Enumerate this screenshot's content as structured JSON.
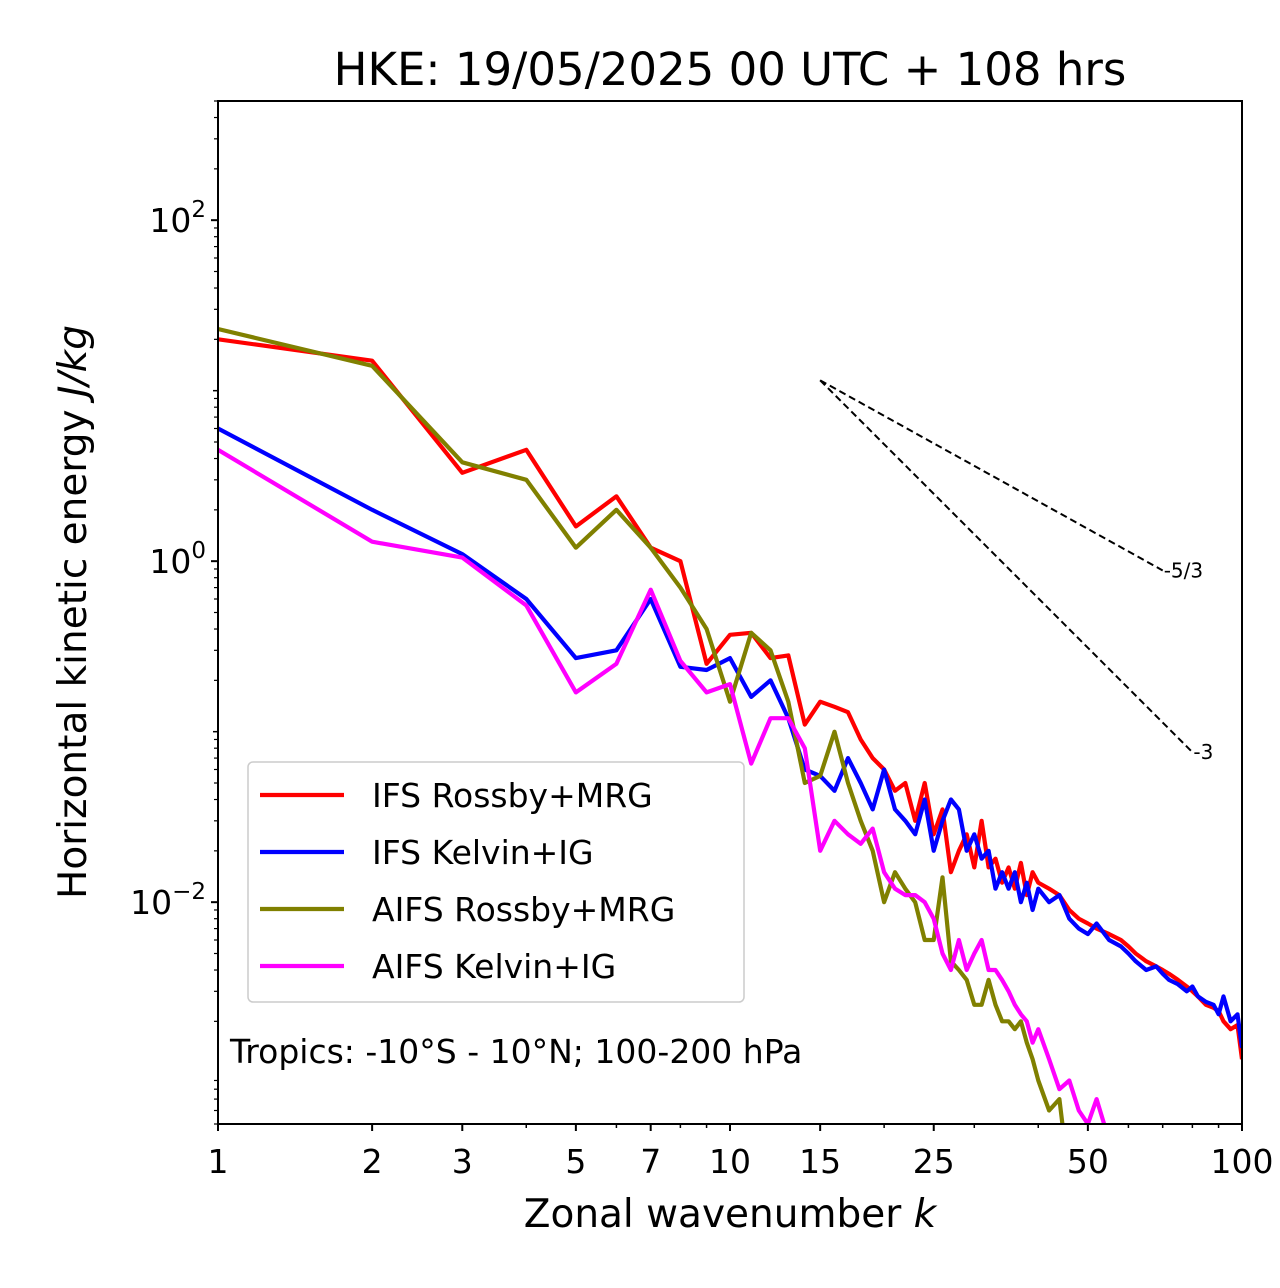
{
  "chart_data": {
    "type": "line",
    "title": "HKE: 19/05/2025 00 UTC + 108 hrs",
    "xlabel": "Zonal wavenumber",
    "xlabel_var": "k",
    "ylabel": "Horizontal kinetic energy",
    "ylabel_unit": "J/kg",
    "xscale": "log",
    "yscale": "log",
    "xlim": [
      1,
      100
    ],
    "ylim": [
      0.0005,
      500
    ],
    "grid": false,
    "legend_position": "lower-left",
    "x_ticks": [
      {
        "value": 1,
        "label": "1"
      },
      {
        "value": 2,
        "label": "2"
      },
      {
        "value": 3,
        "label": "3"
      },
      {
        "value": 5,
        "label": "5"
      },
      {
        "value": 7,
        "label": "7"
      },
      {
        "value": 10,
        "label": "10"
      },
      {
        "value": 15,
        "label": "15"
      },
      {
        "value": 25,
        "label": "25"
      },
      {
        "value": 50,
        "label": "50"
      },
      {
        "value": 100,
        "label": "100"
      }
    ],
    "y_ticks": [
      {
        "value": 0.01,
        "base": "10",
        "exp": "−2"
      },
      {
        "value": 1,
        "base": "10",
        "exp": "0"
      },
      {
        "value": 100,
        "base": "10",
        "exp": "2"
      }
    ],
    "annotation": "Tropics: -10°S - 10°N; 100-200 hPa",
    "reference_lines": [
      {
        "label": "-5/3",
        "slope": -1.6667,
        "x_start": 15,
        "y_start": 11.5,
        "x_end": 70
      },
      {
        "label": "-3",
        "slope": -3,
        "x_start": 15,
        "y_start": 11.5,
        "x_end": 80
      }
    ],
    "series": [
      {
        "name": "IFS Rossby+MRG",
        "color": "#ff0000",
        "x": [
          1,
          2,
          3,
          4,
          5,
          6,
          7,
          8,
          9,
          10,
          11,
          12,
          13,
          14,
          15,
          16,
          17,
          18,
          19,
          20,
          21,
          22,
          23,
          24,
          25,
          26,
          27,
          28,
          29,
          30,
          31,
          32,
          33,
          34,
          35,
          36,
          37,
          38,
          39,
          40,
          42,
          44,
          46,
          48,
          50,
          52,
          55,
          58,
          60,
          62,
          65,
          68,
          70,
          72,
          75,
          78,
          80,
          82,
          85,
          88,
          90,
          92,
          95,
          98,
          100
        ],
        "y": [
          20,
          15,
          3.3,
          4.5,
          1.6,
          2.4,
          1.2,
          1.0,
          0.25,
          0.37,
          0.38,
          0.27,
          0.28,
          0.11,
          0.15,
          0.14,
          0.13,
          0.09,
          0.07,
          0.06,
          0.045,
          0.05,
          0.03,
          0.05,
          0.025,
          0.035,
          0.015,
          0.02,
          0.025,
          0.016,
          0.03,
          0.016,
          0.018,
          0.013,
          0.016,
          0.012,
          0.017,
          0.011,
          0.015,
          0.013,
          0.012,
          0.011,
          0.009,
          0.008,
          0.0075,
          0.007,
          0.0065,
          0.006,
          0.0055,
          0.005,
          0.0045,
          0.0042,
          0.004,
          0.0038,
          0.0035,
          0.0032,
          0.003,
          0.0028,
          0.0025,
          0.0024,
          0.0023,
          0.002,
          0.0018,
          0.0019,
          0.0012
        ]
      },
      {
        "name": "IFS Kelvin+IG",
        "color": "#0000ff",
        "x": [
          1,
          2,
          3,
          4,
          5,
          6,
          7,
          8,
          9,
          10,
          11,
          12,
          13,
          14,
          15,
          16,
          17,
          18,
          19,
          20,
          21,
          22,
          23,
          24,
          25,
          26,
          27,
          28,
          29,
          30,
          31,
          32,
          33,
          34,
          35,
          36,
          37,
          38,
          39,
          40,
          42,
          44,
          46,
          48,
          50,
          52,
          55,
          58,
          60,
          62,
          65,
          68,
          70,
          72,
          75,
          78,
          80,
          82,
          85,
          88,
          90,
          92,
          95,
          98,
          100
        ],
        "y": [
          6,
          2,
          1.1,
          0.6,
          0.27,
          0.3,
          0.6,
          0.24,
          0.23,
          0.27,
          0.16,
          0.2,
          0.12,
          0.06,
          0.055,
          0.045,
          0.07,
          0.05,
          0.035,
          0.06,
          0.035,
          0.03,
          0.025,
          0.04,
          0.02,
          0.03,
          0.04,
          0.035,
          0.02,
          0.025,
          0.018,
          0.02,
          0.012,
          0.015,
          0.012,
          0.015,
          0.01,
          0.013,
          0.009,
          0.012,
          0.01,
          0.011,
          0.008,
          0.007,
          0.0065,
          0.0075,
          0.006,
          0.0055,
          0.005,
          0.0045,
          0.004,
          0.0042,
          0.0038,
          0.0035,
          0.0033,
          0.003,
          0.0032,
          0.0028,
          0.0026,
          0.0025,
          0.0022,
          0.0028,
          0.002,
          0.0022,
          0.0014
        ]
      },
      {
        "name": "AIFS Rossby+MRG",
        "color": "#808000",
        "x": [
          1,
          2,
          3,
          4,
          5,
          6,
          7,
          8,
          9,
          10,
          11,
          12,
          13,
          14,
          15,
          16,
          17,
          18,
          19,
          20,
          21,
          22,
          23,
          24,
          25,
          26,
          27,
          28,
          29,
          30,
          31,
          32,
          33,
          34,
          35,
          36,
          37,
          38,
          39,
          40,
          42,
          44,
          45
        ],
        "y": [
          23,
          14,
          3.8,
          3.0,
          1.2,
          2.0,
          1.2,
          0.7,
          0.4,
          0.15,
          0.38,
          0.3,
          0.15,
          0.05,
          0.055,
          0.1,
          0.05,
          0.03,
          0.02,
          0.01,
          0.015,
          0.012,
          0.01,
          0.006,
          0.006,
          0.014,
          0.0045,
          0.004,
          0.0035,
          0.0025,
          0.0025,
          0.0035,
          0.0025,
          0.002,
          0.002,
          0.0018,
          0.002,
          0.0015,
          0.0012,
          0.0009,
          0.0006,
          0.0007,
          0.0004
        ]
      },
      {
        "name": "AIFS Kelvin+IG",
        "color": "#ff00ff",
        "x": [
          1,
          2,
          3,
          4,
          5,
          6,
          7,
          8,
          9,
          10,
          11,
          12,
          13,
          14,
          15,
          16,
          17,
          18,
          19,
          20,
          21,
          22,
          23,
          24,
          25,
          26,
          27,
          28,
          29,
          30,
          31,
          32,
          33,
          34,
          35,
          36,
          37,
          38,
          39,
          40,
          42,
          44,
          46,
          48,
          50,
          52,
          55
        ],
        "y": [
          4.5,
          1.3,
          1.05,
          0.55,
          0.17,
          0.25,
          0.68,
          0.26,
          0.17,
          0.19,
          0.065,
          0.12,
          0.12,
          0.08,
          0.02,
          0.03,
          0.025,
          0.022,
          0.027,
          0.015,
          0.012,
          0.011,
          0.011,
          0.01,
          0.008,
          0.005,
          0.004,
          0.006,
          0.004,
          0.005,
          0.006,
          0.004,
          0.004,
          0.0035,
          0.003,
          0.0025,
          0.0022,
          0.002,
          0.0015,
          0.0018,
          0.0012,
          0.0008,
          0.0009,
          0.0006,
          0.0005,
          0.0007,
          0.0004
        ]
      }
    ]
  }
}
